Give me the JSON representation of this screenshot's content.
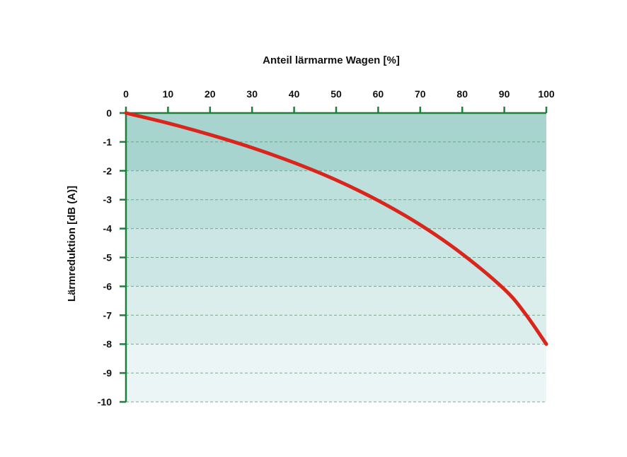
{
  "chart_data": {
    "type": "line",
    "title": "",
    "xlabel": "Anteil lärmarme Wagen [%]",
    "ylabel": "Lärmreduktion [dB (A)]",
    "xlim": [
      0,
      100
    ],
    "ylim": [
      -10,
      0
    ],
    "x_ticks": [
      0,
      10,
      20,
      30,
      40,
      50,
      60,
      70,
      80,
      90,
      100
    ],
    "y_ticks": [
      0,
      -1,
      -2,
      -3,
      -4,
      -5,
      -6,
      -7,
      -8,
      -9,
      -10
    ],
    "x_ticks_labels": [
      "0",
      "10",
      "20",
      "30",
      "40",
      "50",
      "60",
      "70",
      "80",
      "90",
      "100"
    ],
    "y_ticks_labels": [
      "0",
      "-1",
      "-2",
      "-3",
      "-4",
      "-5",
      "-6",
      "-7",
      "-8",
      "-9",
      "-10"
    ],
    "x_axis_position": "top",
    "grid": "horizontal dashed",
    "legend": "none",
    "series": [
      {
        "x": [
          0,
          10,
          20,
          30,
          40,
          50,
          60,
          70,
          80,
          90,
          95,
          100
        ],
        "y": [
          0,
          -0.35,
          -0.75,
          -1.2,
          -1.72,
          -2.32,
          -3.03,
          -3.87,
          -4.88,
          -6.1,
          -6.95,
          -8.0
        ]
      }
    ],
    "bands": [
      {
        "from": 0,
        "to": -2,
        "color": "#a8d4d0"
      },
      {
        "from": -2,
        "to": -4,
        "color": "#bde0dc"
      },
      {
        "from": -4,
        "to": -6,
        "color": "#cbe6e4"
      },
      {
        "from": -6,
        "to": -8,
        "color": "#dbeeec"
      },
      {
        "from": -8,
        "to": -10,
        "color": "#ebf5f5"
      }
    ],
    "colors": {
      "line": "#d8261c",
      "axis": "#1e7f3a",
      "grid": "#5a9a78"
    }
  }
}
